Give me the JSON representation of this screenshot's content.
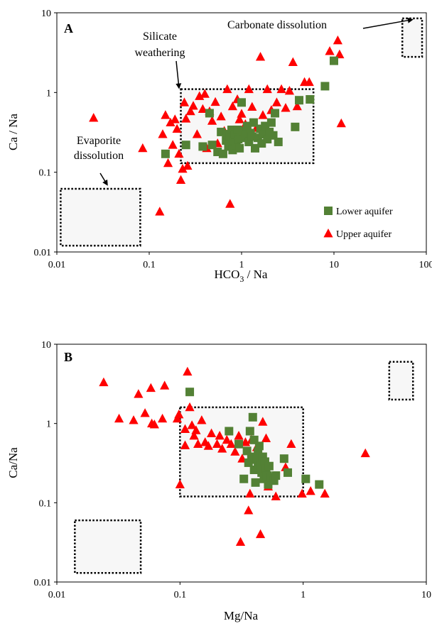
{
  "colors": {
    "lower": "#538135",
    "upper": "#ff0000",
    "box_fill": "#f7f7f7"
  },
  "chart_data": [
    {
      "type": "scatter",
      "panel": "A",
      "xlabel": "HCO3 / Na",
      "xlabel_main": "HCO",
      "xlabel_sub": "3",
      "xlabel_tail": " / Na",
      "ylabel": "Ca / Na",
      "xscale": "log",
      "yscale": "log",
      "xlim": [
        0.01,
        100
      ],
      "ylim": [
        0.01,
        10
      ],
      "xticks": [
        {
          "v": 0.01,
          "label": "0.01"
        },
        {
          "v": 0.1,
          "label": "0.1"
        },
        {
          "v": 1,
          "label": "1"
        },
        {
          "v": 10,
          "label": "10"
        },
        {
          "v": 100,
          "label": "100"
        }
      ],
      "yticks": [
        {
          "v": 0.01,
          "label": "0.01"
        },
        {
          "v": 0.1,
          "label": "0.1"
        },
        {
          "v": 1,
          "label": "1"
        },
        {
          "v": 10,
          "label": "10"
        }
      ],
      "legend": {
        "position": "bottom-right",
        "items": [
          {
            "name": "Lower aquifer",
            "marker": "square",
            "color": "#538135"
          },
          {
            "name": "Upper aquifer",
            "marker": "triangle",
            "color": "#ff0000"
          }
        ]
      },
      "regions": [
        {
          "name": "Evaporite dissolution",
          "x": [
            0.011,
            0.08
          ],
          "y": [
            0.012,
            0.062
          ]
        },
        {
          "name": "Silicate weathering",
          "x": [
            0.22,
            6
          ],
          "y": [
            0.13,
            1.1
          ]
        },
        {
          "name": "Carbonate dissolution",
          "x": [
            55,
            90
          ],
          "y": [
            2.8,
            8.5
          ]
        }
      ],
      "annotations": [
        {
          "text": "Evaporite dissolution",
          "lines": [
            "Evaporite",
            "dissolution"
          ],
          "arrow_to": [
            0.035,
            0.07
          ]
        },
        {
          "text": "Silicate weathering",
          "lines": [
            "Silicate",
            "weathering"
          ],
          "arrow_to": [
            0.21,
            1.15
          ]
        },
        {
          "text": "Carbonate dissolution",
          "lines": [
            "Carbonate dissolution"
          ],
          "arrow_to": [
            70,
            8.2
          ]
        }
      ],
      "series": [
        {
          "name": "Lower aquifer",
          "marker": "square",
          "points": [
            [
              0.15,
              0.17
            ],
            [
              0.25,
              0.22
            ],
            [
              0.38,
              0.21
            ],
            [
              0.45,
              0.55
            ],
            [
              0.48,
              0.22
            ],
            [
              0.55,
              0.18
            ],
            [
              0.6,
              0.32
            ],
            [
              0.63,
              0.17
            ],
            [
              0.68,
              0.25
            ],
            [
              0.7,
              0.3
            ],
            [
              0.72,
              0.21
            ],
            [
              0.75,
              0.28
            ],
            [
              0.78,
              0.34
            ],
            [
              0.8,
              0.19
            ],
            [
              0.82,
              0.25
            ],
            [
              0.85,
              0.3
            ],
            [
              0.88,
              0.22
            ],
            [
              0.9,
              0.34
            ],
            [
              0.92,
              0.26
            ],
            [
              0.95,
              0.2
            ],
            [
              1.0,
              0.75
            ],
            [
              1.0,
              0.27
            ],
            [
              1.05,
              0.33
            ],
            [
              1.1,
              0.29
            ],
            [
              1.15,
              0.38
            ],
            [
              1.2,
              0.24
            ],
            [
              1.25,
              0.31
            ],
            [
              1.3,
              0.28
            ],
            [
              1.35,
              0.42
            ],
            [
              1.4,
              0.2
            ],
            [
              1.5,
              0.27
            ],
            [
              1.6,
              0.35
            ],
            [
              1.65,
              0.23
            ],
            [
              1.7,
              0.3
            ],
            [
              1.8,
              0.38
            ],
            [
              1.9,
              0.26
            ],
            [
              2.0,
              0.32
            ],
            [
              2.1,
              0.42
            ],
            [
              2.2,
              0.29
            ],
            [
              2.3,
              0.55
            ],
            [
              2.5,
              0.24
            ],
            [
              3.8,
              0.37
            ],
            [
              4.2,
              0.8
            ],
            [
              5.5,
              0.82
            ],
            [
              8.0,
              1.2
            ],
            [
              10,
              2.5
            ]
          ]
        },
        {
          "name": "Upper aquifer",
          "marker": "triangle",
          "points": [
            [
              0.025,
              0.48
            ],
            [
              0.085,
              0.2
            ],
            [
              0.13,
              0.032
            ],
            [
              0.14,
              0.3
            ],
            [
              0.15,
              0.52
            ],
            [
              0.16,
              0.13
            ],
            [
              0.17,
              0.42
            ],
            [
              0.18,
              0.22
            ],
            [
              0.19,
              0.46
            ],
            [
              0.2,
              0.35
            ],
            [
              0.21,
              0.17
            ],
            [
              0.22,
              0.08
            ],
            [
              0.23,
              0.11
            ],
            [
              0.24,
              0.75
            ],
            [
              0.25,
              0.47
            ],
            [
              0.26,
              0.12
            ],
            [
              0.28,
              0.58
            ],
            [
              0.3,
              0.68
            ],
            [
              0.33,
              0.3
            ],
            [
              0.35,
              0.9
            ],
            [
              0.38,
              0.62
            ],
            [
              0.4,
              0.96
            ],
            [
              0.42,
              0.2
            ],
            [
              0.45,
              0.58
            ],
            [
              0.48,
              0.44
            ],
            [
              0.52,
              0.76
            ],
            [
              0.55,
              0.23
            ],
            [
              0.6,
              0.5
            ],
            [
              0.65,
              0.33
            ],
            [
              0.7,
              1.1
            ],
            [
              0.75,
              0.04
            ],
            [
              0.8,
              0.67
            ],
            [
              0.85,
              0.3
            ],
            [
              0.9,
              0.82
            ],
            [
              0.95,
              0.46
            ],
            [
              1.0,
              0.54
            ],
            [
              1.1,
              0.4
            ],
            [
              1.2,
              1.1
            ],
            [
              1.3,
              0.66
            ],
            [
              1.45,
              0.36
            ],
            [
              1.6,
              2.8
            ],
            [
              1.7,
              0.52
            ],
            [
              1.9,
              1.1
            ],
            [
              2.1,
              0.6
            ],
            [
              2.4,
              0.75
            ],
            [
              2.7,
              1.1
            ],
            [
              3.0,
              0.64
            ],
            [
              3.3,
              1.05
            ],
            [
              3.6,
              2.4
            ],
            [
              4.0,
              0.67
            ],
            [
              4.8,
              1.35
            ],
            [
              5.4,
              1.35
            ],
            [
              9.0,
              3.3
            ],
            [
              11,
              4.5
            ],
            [
              11.5,
              3.0
            ],
            [
              12,
              0.41
            ]
          ]
        }
      ]
    },
    {
      "type": "scatter",
      "panel": "B",
      "xlabel": "Mg/Na",
      "ylabel": "Ca/Na",
      "xscale": "log",
      "yscale": "log",
      "xlim": [
        0.01,
        10
      ],
      "ylim": [
        0.01,
        10
      ],
      "xticks": [
        {
          "v": 0.01,
          "label": "0.01"
        },
        {
          "v": 0.1,
          "label": "0.1"
        },
        {
          "v": 1,
          "label": "1"
        },
        {
          "v": 10,
          "label": "10"
        }
      ],
      "yticks": [
        {
          "v": 0.01,
          "label": "0.01"
        },
        {
          "v": 0.1,
          "label": "0.1"
        },
        {
          "v": 1,
          "label": "1"
        },
        {
          "v": 10,
          "label": "10"
        }
      ],
      "regions": [
        {
          "x": [
            0.014,
            0.048
          ],
          "y": [
            0.013,
            0.06
          ]
        },
        {
          "x": [
            0.1,
            1.0
          ],
          "y": [
            0.12,
            1.6
          ]
        },
        {
          "x": [
            5.0,
            7.8
          ],
          "y": [
            2.0,
            6.0
          ]
        }
      ],
      "series": [
        {
          "name": "Lower aquifer",
          "marker": "square",
          "points": [
            [
              0.12,
              2.5
            ],
            [
              0.25,
              0.8
            ],
            [
              0.3,
              0.55
            ],
            [
              0.33,
              0.2
            ],
            [
              0.35,
              0.45
            ],
            [
              0.36,
              0.32
            ],
            [
              0.37,
              0.8
            ],
            [
              0.38,
              0.38
            ],
            [
              0.39,
              1.2
            ],
            [
              0.4,
              0.26
            ],
            [
              0.4,
              0.62
            ],
            [
              0.41,
              0.18
            ],
            [
              0.42,
              0.35
            ],
            [
              0.43,
              0.44
            ],
            [
              0.43,
              0.28
            ],
            [
              0.44,
              0.52
            ],
            [
              0.45,
              0.3
            ],
            [
              0.46,
              0.24
            ],
            [
              0.47,
              0.38
            ],
            [
              0.48,
              0.2
            ],
            [
              0.49,
              0.33
            ],
            [
              0.5,
              0.27
            ],
            [
              0.51,
              0.22
            ],
            [
              0.52,
              0.17
            ],
            [
              0.53,
              0.29
            ],
            [
              0.55,
              0.21
            ],
            [
              0.58,
              0.19
            ],
            [
              0.6,
              0.22
            ],
            [
              0.7,
              0.36
            ],
            [
              0.75,
              0.24
            ],
            [
              1.05,
              0.2
            ],
            [
              1.35,
              0.17
            ]
          ]
        },
        {
          "name": "Upper aquifer",
          "marker": "triangle",
          "points": [
            [
              0.024,
              3.3
            ],
            [
              0.032,
              1.15
            ],
            [
              0.042,
              1.1
            ],
            [
              0.046,
              2.35
            ],
            [
              0.052,
              1.35
            ],
            [
              0.058,
              2.8
            ],
            [
              0.059,
              1.0
            ],
            [
              0.062,
              0.97
            ],
            [
              0.072,
              1.15
            ],
            [
              0.075,
              3.0
            ],
            [
              0.095,
              1.15
            ],
            [
              0.098,
              1.3
            ],
            [
              0.1,
              0.17
            ],
            [
              0.11,
              0.53
            ],
            [
              0.11,
              0.85
            ],
            [
              0.115,
              4.5
            ],
            [
              0.12,
              1.6
            ],
            [
              0.125,
              0.95
            ],
            [
              0.13,
              0.7
            ],
            [
              0.135,
              0.82
            ],
            [
              0.14,
              0.55
            ],
            [
              0.15,
              1.1
            ],
            [
              0.16,
              0.58
            ],
            [
              0.17,
              0.52
            ],
            [
              0.18,
              0.75
            ],
            [
              0.2,
              0.55
            ],
            [
              0.21,
              0.7
            ],
            [
              0.22,
              0.48
            ],
            [
              0.24,
              0.62
            ],
            [
              0.26,
              0.55
            ],
            [
              0.28,
              0.44
            ],
            [
              0.3,
              0.7
            ],
            [
              0.31,
              0.032
            ],
            [
              0.32,
              0.36
            ],
            [
              0.34,
              0.58
            ],
            [
              0.36,
              0.08
            ],
            [
              0.37,
              0.13
            ],
            [
              0.38,
              0.62
            ],
            [
              0.42,
              0.5
            ],
            [
              0.45,
              0.04
            ],
            [
              0.47,
              1.05
            ],
            [
              0.5,
              0.65
            ],
            [
              0.52,
              0.16
            ],
            [
              0.6,
              0.12
            ],
            [
              0.72,
              0.28
            ],
            [
              0.8,
              0.55
            ],
            [
              0.98,
              0.13
            ],
            [
              1.15,
              0.14
            ],
            [
              1.5,
              0.13
            ],
            [
              3.2,
              0.42
            ]
          ]
        }
      ]
    }
  ]
}
